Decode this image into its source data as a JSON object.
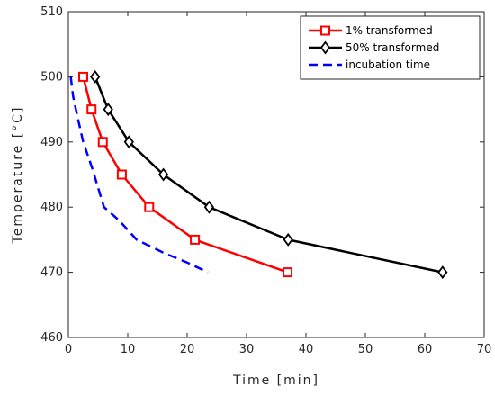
{
  "chart_data": {
    "type": "line",
    "xlabel": "Time [min]",
    "ylabel": "Temperature [°C]",
    "xlim": [
      0,
      70
    ],
    "ylim": [
      460,
      510
    ],
    "xticks": [
      0,
      10,
      20,
      30,
      40,
      50,
      60,
      70
    ],
    "yticks": [
      460,
      470,
      480,
      490,
      500,
      510
    ],
    "grid": false,
    "legend_position": "top-right",
    "series": [
      {
        "name": "1% transformed",
        "color": "#ff0000",
        "marker": "square",
        "line_style": "solid",
        "x": [
          2.5,
          3.9,
          5.8,
          9.0,
          13.6,
          21.3,
          36.9
        ],
        "y": [
          500,
          495,
          490,
          485,
          480,
          475,
          470
        ]
      },
      {
        "name": "50% transformed",
        "color": "#000000",
        "marker": "diamond",
        "line_style": "solid",
        "x": [
          4.5,
          6.7,
          10.2,
          16.0,
          23.7,
          37.0,
          63.0
        ],
        "y": [
          500,
          495,
          490,
          485,
          480,
          475,
          470
        ]
      },
      {
        "name": "incubation time",
        "color": "#0000ff",
        "marker": "none",
        "line_style": "dashed",
        "x": [
          0.4,
          0.8,
          1.5,
          2.5,
          4.0,
          6.0,
          8.5,
          11.5,
          16.0,
          20.0,
          23.5
        ],
        "y": [
          500,
          497,
          494,
          490,
          486,
          480,
          478,
          475,
          473,
          471.5,
          470
        ]
      }
    ]
  }
}
